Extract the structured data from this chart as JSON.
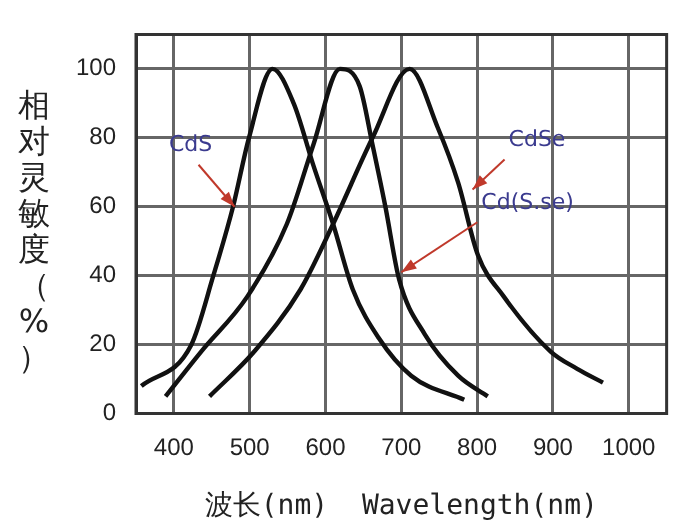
{
  "chart_data": {
    "type": "line",
    "xlabel": "波长(nm)  Wavelength(nm)",
    "ylabel": "相对灵敏度（%）",
    "xlim": [
      350,
      1050
    ],
    "xticks": [
      400,
      500,
      600,
      700,
      800,
      900,
      1000
    ],
    "ylim": [
      0,
      110
    ],
    "yticks": [
      0,
      20,
      40,
      60,
      80,
      100
    ],
    "grid": true,
    "legend": false,
    "marker": "none",
    "line_style": "solid",
    "series": [
      {
        "color": "#111111",
        "x": [
          357,
          423,
          452,
          478,
          499,
          530,
          558,
          584,
          610,
          636,
          670,
          713,
          783
        ],
        "values": [
          8,
          20,
          40,
          60,
          80,
          100,
          90,
          72,
          55,
          36,
          22,
          11,
          4
        ]
      },
      {
        "color": "#111111",
        "x": [
          389,
          436,
          497,
          549,
          584,
          619,
          645,
          662,
          679,
          697,
          731,
          775,
          814
        ],
        "values": [
          5,
          18,
          34,
          55,
          78,
          100,
          95,
          78,
          60,
          39,
          23,
          11,
          5
        ]
      },
      {
        "color": "#111111",
        "x": [
          447,
          506,
          567,
          610,
          662,
          711,
          748,
          775,
          801,
          835,
          897,
          932,
          966
        ],
        "values": [
          5,
          18,
          36,
          55,
          80,
          100,
          83,
          67,
          46,
          34,
          18,
          13,
          9
        ]
      }
    ],
    "annotations": [
      {
        "text": "CdS",
        "x": 480,
        "y": 60
      },
      {
        "text": "Cd(S.se)",
        "x": 700,
        "y": 41
      },
      {
        "text": "CdSe",
        "x": 794,
        "y": 65
      }
    ]
  }
}
